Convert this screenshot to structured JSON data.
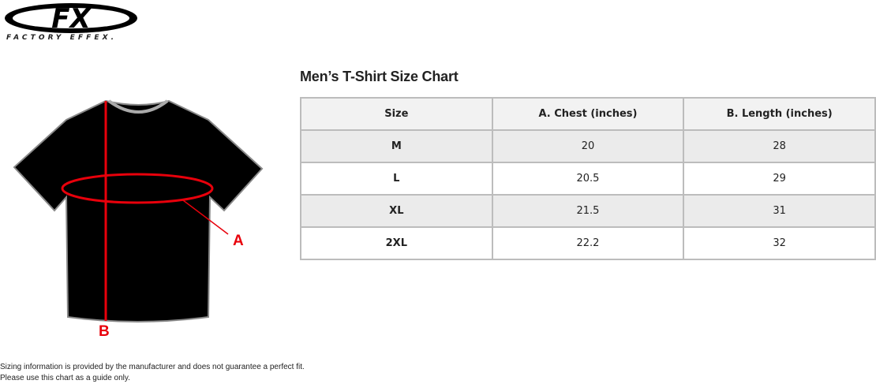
{
  "brand": {
    "logo_letters": "FX",
    "name": "FACTORY EFFEX."
  },
  "title": "Men’s T-Shirt Size Chart",
  "diagram": {
    "label_a": "A",
    "label_b": "B",
    "measure_color": "#e8000b"
  },
  "table": {
    "headers": [
      "Size",
      "A. Chest (inches)",
      "B. Length (inches)"
    ],
    "rows": [
      [
        "M",
        "20",
        "28"
      ],
      [
        "L",
        "20.5",
        "29"
      ],
      [
        "XL",
        "21.5",
        "31"
      ],
      [
        "2XL",
        "22.2",
        "32"
      ]
    ]
  },
  "note": {
    "line1": "Sizing information is provided by the manufacturer and does not guarantee a perfect fit.",
    "line2": "Please use this chart as a guide only."
  }
}
